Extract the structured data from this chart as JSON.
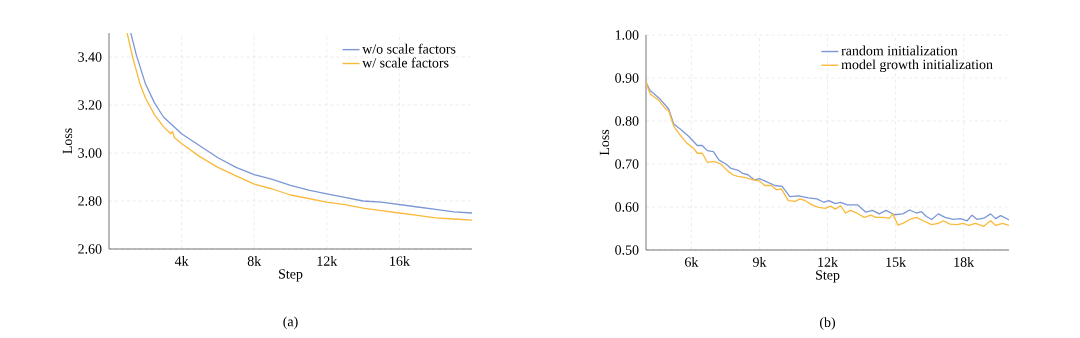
{
  "chart_data": [
    {
      "type": "line",
      "xlabel": "Step",
      "ylabel": "Loss",
      "xlim": [
        0,
        20000
      ],
      "ylim": [
        2.6,
        3.5
      ],
      "xticks": [
        {
          "value": 4000,
          "label": "4k"
        },
        {
          "value": 8000,
          "label": "8k"
        },
        {
          "value": 12000,
          "label": "12k"
        },
        {
          "value": 16000,
          "label": "16k"
        }
      ],
      "yticks": [
        {
          "value": 2.6,
          "label": "2.60"
        },
        {
          "value": 2.8,
          "label": "2.80"
        },
        {
          "value": 3.0,
          "label": "3.00"
        },
        {
          "value": 3.2,
          "label": "3.20"
        },
        {
          "value": 3.4,
          "label": "3.40"
        }
      ],
      "grid": true,
      "legend": "top right",
      "annotations": [
        "(a)"
      ],
      "series": [
        {
          "name": "w/o scale factors",
          "color": "#7b97d6",
          "x": [
            1200,
            1500,
            2000,
            2500,
            3000,
            4000,
            5000,
            6000,
            7000,
            8000,
            9000,
            10000,
            11000,
            12000,
            13000,
            14000,
            15000,
            16000,
            17000,
            18000,
            19000,
            20000
          ],
          "values": [
            3.5,
            3.41,
            3.29,
            3.21,
            3.15,
            3.08,
            3.03,
            2.98,
            2.94,
            2.91,
            2.89,
            2.865,
            2.845,
            2.83,
            2.815,
            2.8,
            2.795,
            2.785,
            2.775,
            2.765,
            2.755,
            2.75
          ]
        },
        {
          "name": "w/ scale factors",
          "color": "#f9b93b",
          "x": [
            1000,
            1300,
            1700,
            2000,
            2500,
            3000,
            3400,
            3500,
            3600,
            4000,
            5000,
            6000,
            7000,
            8000,
            9000,
            10000,
            11000,
            12000,
            13000,
            14000,
            15000,
            16000,
            17000,
            18000,
            19000,
            20000
          ],
          "values": [
            3.5,
            3.4,
            3.29,
            3.23,
            3.16,
            3.11,
            3.08,
            3.09,
            3.065,
            3.04,
            2.985,
            2.94,
            2.905,
            2.87,
            2.85,
            2.825,
            2.81,
            2.795,
            2.785,
            2.77,
            2.76,
            2.75,
            2.74,
            2.73,
            2.725,
            2.72
          ]
        }
      ]
    },
    {
      "type": "line",
      "xlabel": "Step",
      "ylabel": "Loss",
      "xlim": [
        4000,
        20000
      ],
      "ylim": [
        0.5,
        1.0
      ],
      "xticks": [
        {
          "value": 6000,
          "label": "6k"
        },
        {
          "value": 9000,
          "label": "9k"
        },
        {
          "value": 12000,
          "label": "12k"
        },
        {
          "value": 15000,
          "label": "15k"
        },
        {
          "value": 18000,
          "label": "18k"
        }
      ],
      "yticks": [
        {
          "value": 0.5,
          "label": "0.50"
        },
        {
          "value": 0.6,
          "label": "0.60"
        },
        {
          "value": 0.7,
          "label": "0.70"
        },
        {
          "value": 0.8,
          "label": "0.80"
        },
        {
          "value": 0.9,
          "label": "0.90"
        },
        {
          "value": 1.0,
          "label": "1.00"
        }
      ],
      "grid": true,
      "legend": "top right",
      "annotations": [
        "(b)"
      ],
      "series": [
        {
          "name": "random initialization",
          "color": "#7b97d6",
          "x": [
            4000,
            4180,
            4620,
            5000,
            5220,
            5520,
            5890,
            6260,
            6480,
            6700,
            6970,
            7220,
            7520,
            7740,
            8040,
            8260,
            8490,
            8780,
            9000,
            9300,
            9680,
            10000,
            10340,
            10720,
            11160,
            11530,
            11830,
            12050,
            12350,
            12570,
            12870,
            13320,
            13690,
            13980,
            14280,
            14580,
            14950,
            15320,
            15620,
            15920,
            16140,
            16360,
            16590,
            16880,
            17180,
            17550,
            17850,
            18150,
            18370,
            18600,
            18890,
            19190,
            19410,
            19630,
            19930,
            20000
          ],
          "values": [
            0.89,
            0.871,
            0.851,
            0.828,
            0.793,
            0.781,
            0.764,
            0.743,
            0.743,
            0.731,
            0.729,
            0.709,
            0.7,
            0.69,
            0.686,
            0.678,
            0.675,
            0.663,
            0.666,
            0.659,
            0.65,
            0.648,
            0.624,
            0.626,
            0.621,
            0.619,
            0.611,
            0.615,
            0.608,
            0.611,
            0.605,
            0.605,
            0.588,
            0.592,
            0.584,
            0.592,
            0.582,
            0.584,
            0.593,
            0.586,
            0.589,
            0.578,
            0.571,
            0.584,
            0.576,
            0.571,
            0.573,
            0.568,
            0.581,
            0.571,
            0.574,
            0.584,
            0.573,
            0.58,
            0.572,
            0.57
          ]
        },
        {
          "name": "model growth initialization",
          "color": "#f9b93b",
          "x": [
            4000,
            4180,
            4550,
            4850,
            5000,
            5220,
            5520,
            5810,
            6110,
            6260,
            6480,
            6700,
            7000,
            7300,
            7600,
            7820,
            8040,
            8340,
            8640,
            9000,
            9230,
            9530,
            9750,
            9970,
            10270,
            10570,
            10790,
            11010,
            11310,
            11610,
            11900,
            12130,
            12350,
            12570,
            12800,
            13020,
            13320,
            13620,
            13910,
            14130,
            14430,
            14730,
            14880,
            15100,
            15320,
            15620,
            15920,
            16210,
            16590,
            16880,
            17100,
            17400,
            17700,
            18000,
            18220,
            18520,
            18890,
            19190,
            19410,
            19710,
            20000
          ],
          "values": [
            0.89,
            0.863,
            0.849,
            0.829,
            0.824,
            0.788,
            0.766,
            0.748,
            0.736,
            0.725,
            0.725,
            0.704,
            0.706,
            0.7,
            0.684,
            0.675,
            0.671,
            0.669,
            0.664,
            0.661,
            0.65,
            0.65,
            0.64,
            0.642,
            0.615,
            0.613,
            0.619,
            0.615,
            0.605,
            0.599,
            0.597,
            0.602,
            0.595,
            0.603,
            0.586,
            0.592,
            0.585,
            0.576,
            0.581,
            0.576,
            0.576,
            0.574,
            0.584,
            0.558,
            0.562,
            0.571,
            0.576,
            0.568,
            0.559,
            0.562,
            0.568,
            0.56,
            0.559,
            0.562,
            0.557,
            0.562,
            0.555,
            0.568,
            0.557,
            0.562,
            0.557
          ]
        }
      ]
    }
  ]
}
